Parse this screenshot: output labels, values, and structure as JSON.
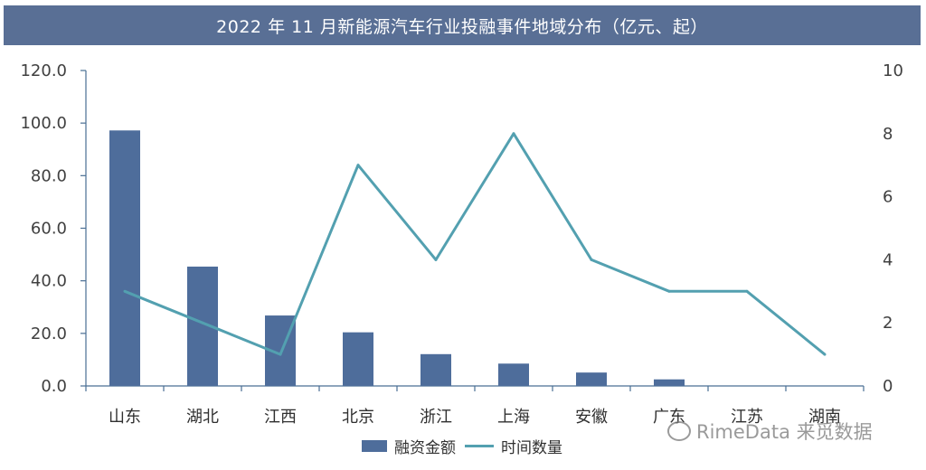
{
  "title": "2022 年 11 月新能源汽车行业投融事件地域分布（亿元、起）",
  "colors": {
    "header_bg": "#596f95",
    "bar": "#4e6d9b",
    "line": "#53a0b0"
  },
  "watermark": "RimeData 来觅数据",
  "chart_data": {
    "type": "bar",
    "title": "2022 年 11 月新能源汽车行业投融事件地域分布（亿元、起）",
    "categories": [
      "山东",
      "湖北",
      "江西",
      "北京",
      "浙江",
      "上海",
      "安徽",
      "广东",
      "江苏",
      "湖南"
    ],
    "series": [
      {
        "name": "融资金额",
        "type": "bar",
        "axis": "left",
        "values": [
          97.2,
          45.4,
          26.8,
          20.4,
          12.1,
          8.5,
          5.1,
          2.5,
          0,
          0
        ]
      },
      {
        "name": "时间数量",
        "type": "line",
        "axis": "right",
        "values": [
          3,
          2,
          1,
          7,
          4,
          8,
          4,
          3,
          3,
          1
        ]
      }
    ],
    "y_left": {
      "ylim": [
        0,
        120
      ],
      "ticks": [
        "0.0",
        "20.0",
        "40.0",
        "60.0",
        "80.0",
        "100.0",
        "120.0"
      ]
    },
    "y_right": {
      "ylim": [
        0,
        10
      ],
      "ticks": [
        "0",
        "2",
        "4",
        "6",
        "8",
        "10"
      ]
    },
    "legend": {
      "position": "bottom",
      "entries": [
        "融资金额",
        "时间数量"
      ]
    },
    "grid": false
  }
}
